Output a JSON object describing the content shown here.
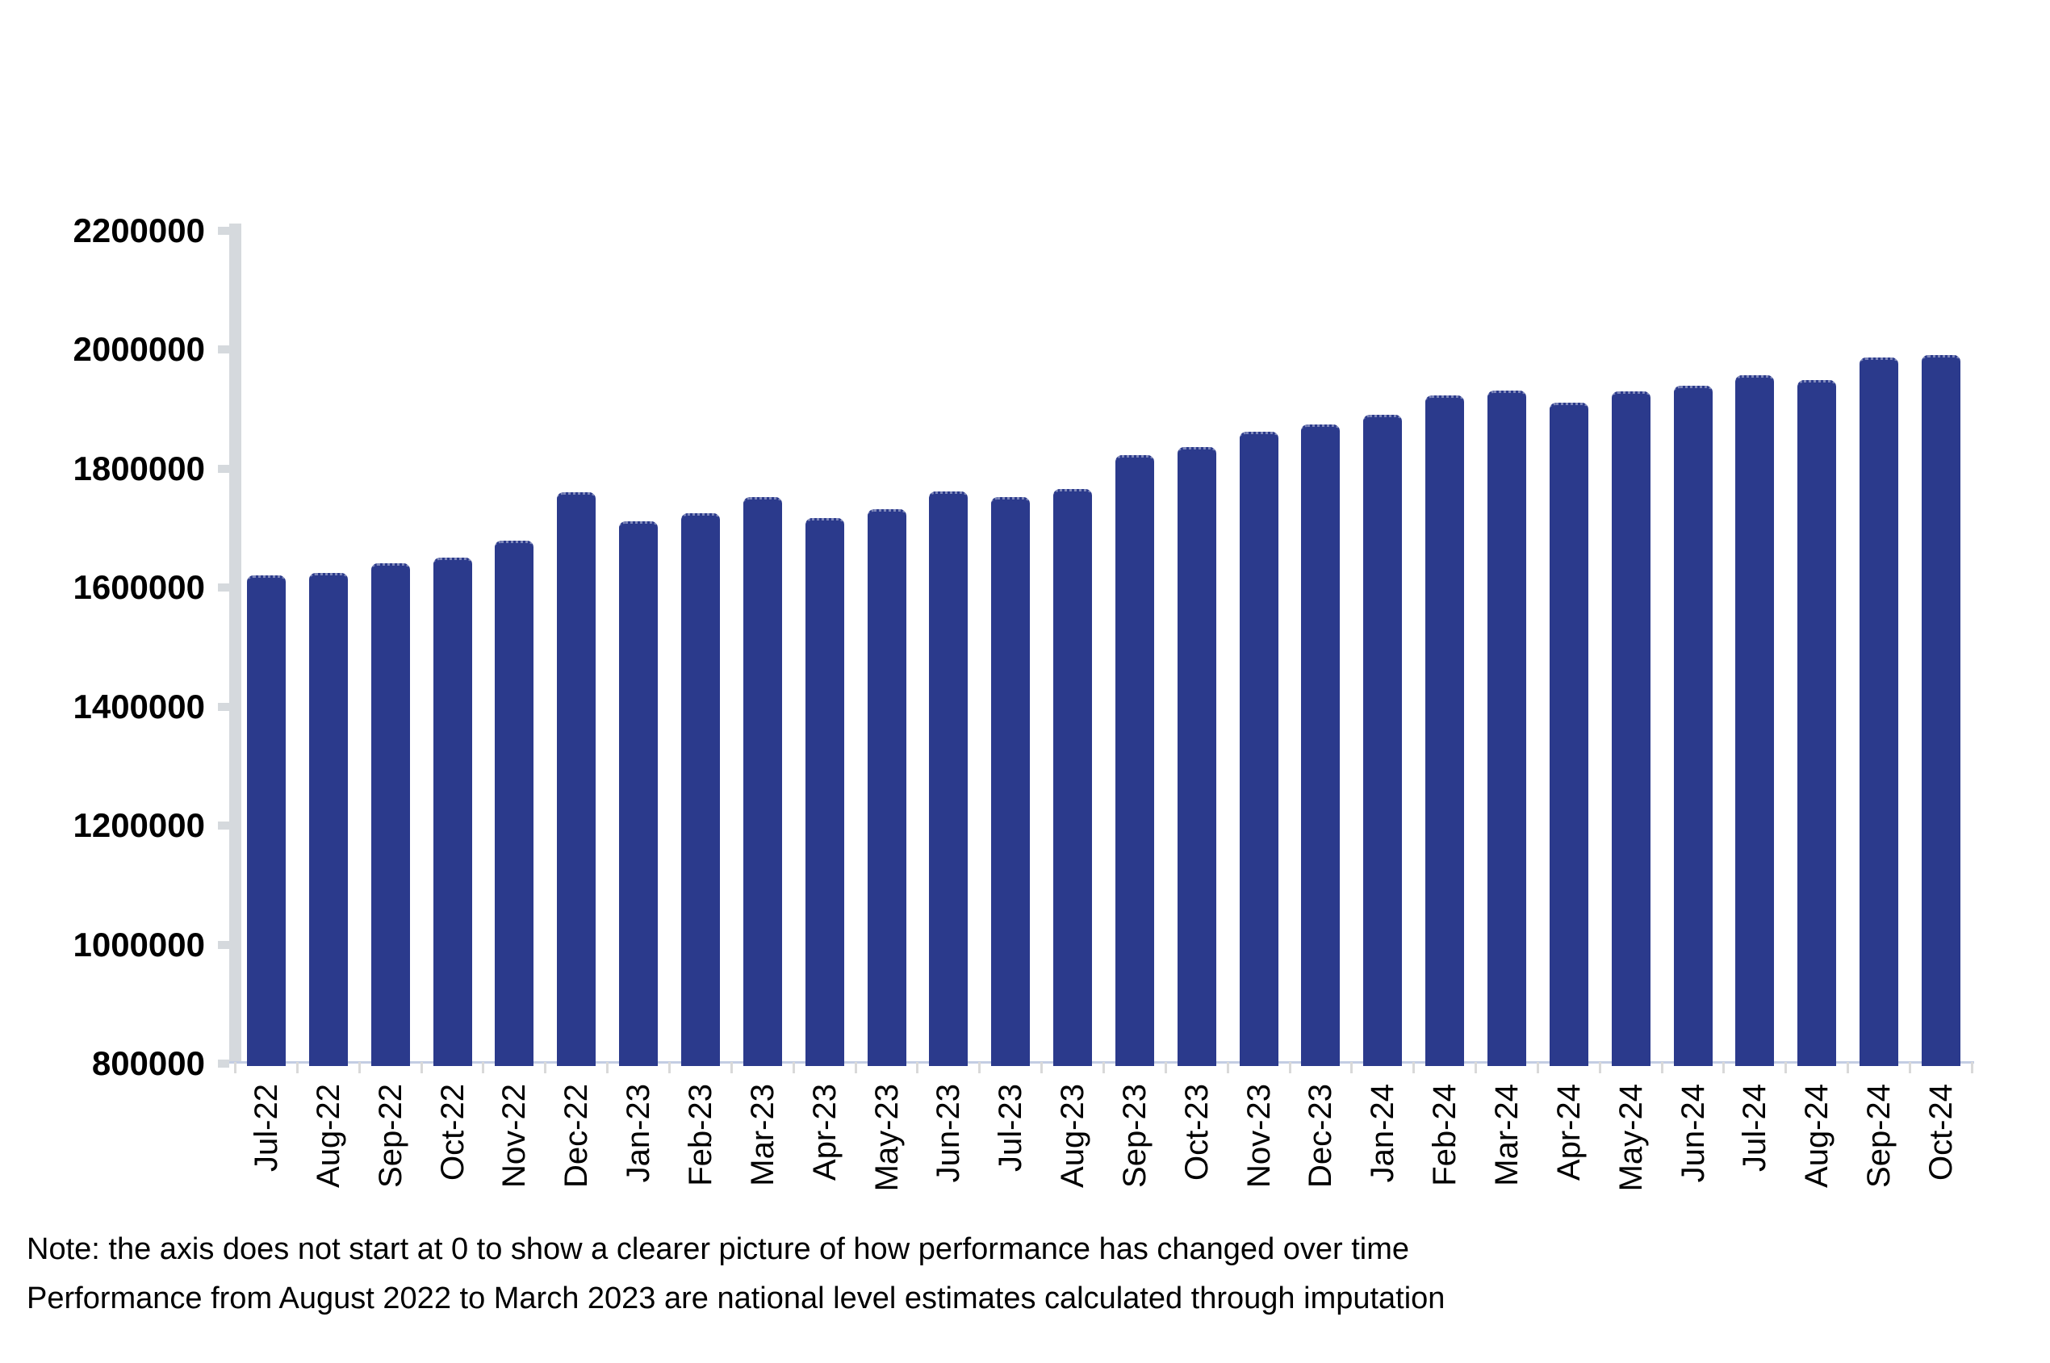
{
  "chart_data": {
    "type": "bar",
    "title": "",
    "xlabel": "",
    "ylabel": "",
    "categories": [
      "Jul-22",
      "Aug-22",
      "Sep-22",
      "Oct-22",
      "Nov-22",
      "Dec-22",
      "Jan-23",
      "Feb-23",
      "Mar-23",
      "Apr-23",
      "May-23",
      "Jun-23",
      "Jul-23",
      "Aug-23",
      "Sep-23",
      "Oct-23",
      "Nov-23",
      "Dec-23",
      "Jan-24",
      "Feb-24",
      "Mar-24",
      "Apr-24",
      "May-24",
      "Jun-24",
      "Jul-24",
      "Aug-24",
      "Sep-24",
      "Oct-24"
    ],
    "values": [
      1624000,
      1629000,
      1645000,
      1654000,
      1683000,
      1764000,
      1715000,
      1729000,
      1756000,
      1721000,
      1736000,
      1766000,
      1756000,
      1770000,
      1827000,
      1840000,
      1866000,
      1878000,
      1894000,
      1927000,
      1935000,
      1915000,
      1934000,
      1943000,
      1961000,
      1952000,
      1990000,
      1994000
    ],
    "ylim": [
      800000,
      2200000
    ],
    "ytick_step": 200000,
    "ytick_labels": [
      "2200000",
      "2000000",
      "1800000",
      "1600000",
      "1400000",
      "1200000",
      "1000000",
      "800000"
    ],
    "grid": false,
    "legend": "none",
    "bar_color": "#2b3a8c",
    "y_axis_color": "#d5d9dd",
    "x_axis_color": "#c3cde3",
    "x_tick_color": "#d9d9d9",
    "text_color": "#000000"
  },
  "notes": {
    "line1": "Note: the axis does not start at 0 to show a clearer picture of how performance has changed over time",
    "line2": "Performance from August 2022 to March 2023 are national level estimates calculated through imputation"
  }
}
